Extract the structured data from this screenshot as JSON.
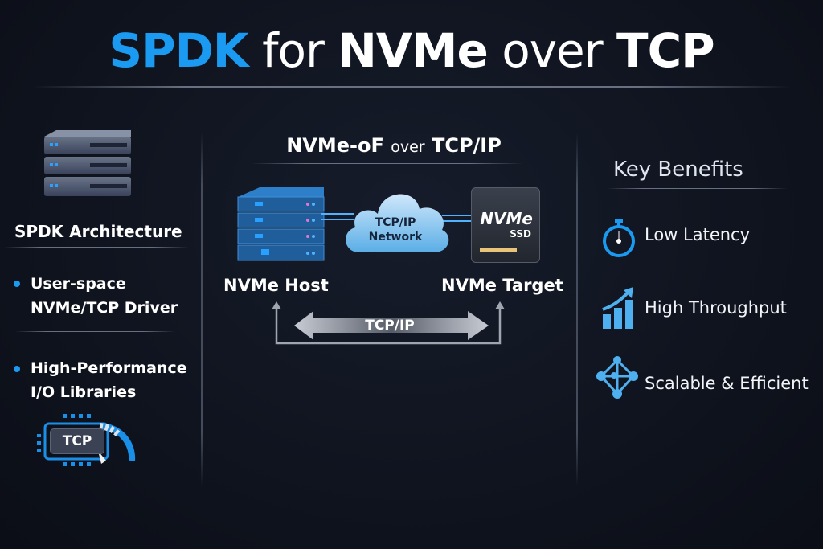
{
  "header": {
    "title_accent": "SPDK",
    "title_word1": "for",
    "title_word2": "NVMe",
    "title_word3": "over",
    "title_word4": "TCP"
  },
  "left": {
    "icon": "server-stack-icon",
    "heading": "SPDK Architecture",
    "bullets": [
      {
        "line1": "User-space",
        "line2": "NVMe/TCP Driver"
      },
      {
        "line1": "High-Performance",
        "line2": "I/O Libraries"
      }
    ],
    "chip_label": "TCP"
  },
  "center": {
    "heading_part1": "NVMe-oF",
    "heading_part2": "over",
    "heading_part3": "TCP/IP",
    "cloud_line1": "TCP/IP",
    "cloud_line2": "Network",
    "ssd_line1": "NVMe",
    "ssd_line2": "SSD",
    "host_label": "NVMe Host",
    "target_label": "NVMe Target",
    "arrow_label": "TCP/IP"
  },
  "right": {
    "heading": "Key Benefits",
    "items": [
      {
        "label": "Low Latency",
        "icon": "stopwatch-icon"
      },
      {
        "label": "High Throughput",
        "icon": "growth-chart-icon"
      },
      {
        "label": "Scalable & Efficient",
        "icon": "network-nodes-icon"
      }
    ]
  },
  "colors": {
    "accent": "#1a9af0",
    "background": "#0f1420"
  }
}
